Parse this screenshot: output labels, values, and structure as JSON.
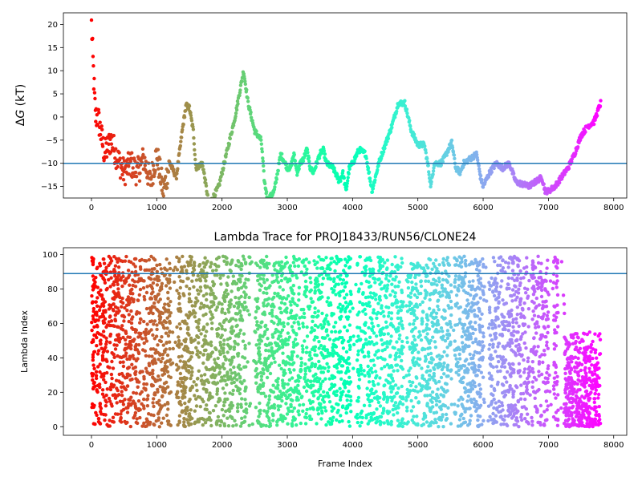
{
  "chart_data": [
    {
      "type": "scatter",
      "title": "",
      "xlabel": "",
      "ylabel_prefix": "Δ",
      "ylabel_var": "G",
      "ylabel_suffix": " (kT)",
      "xlim": [
        -430,
        8200
      ],
      "ylim": [
        -17.5,
        22.5
      ],
      "xticks": [
        0,
        1000,
        2000,
        3000,
        4000,
        5000,
        6000,
        7000,
        8000
      ],
      "yticks": [
        -15,
        -10,
        -5,
        0,
        5,
        10,
        15,
        20
      ],
      "hline": {
        "y": -10,
        "color": "#1f77b4"
      },
      "colormap": "rainbow_r",
      "color_by": "frame",
      "x_max_frame": 7800,
      "trace_keypoints": [
        [
          0,
          20
        ],
        [
          30,
          10
        ],
        [
          60,
          0
        ],
        [
          100,
          0
        ],
        [
          150,
          -4
        ],
        [
          200,
          -8
        ],
        [
          300,
          -5
        ],
        [
          400,
          -9
        ],
        [
          500,
          -12
        ],
        [
          600,
          -10
        ],
        [
          700,
          -12
        ],
        [
          800,
          -9
        ],
        [
          900,
          -14
        ],
        [
          1000,
          -8
        ],
        [
          1100,
          -16
        ],
        [
          1200,
          -10
        ],
        [
          1300,
          -13
        ],
        [
          1400,
          -2
        ],
        [
          1450,
          2.5
        ],
        [
          1500,
          2
        ],
        [
          1560,
          -3
        ],
        [
          1600,
          -11
        ],
        [
          1700,
          -10
        ],
        [
          1800,
          -19
        ],
        [
          1950,
          -15
        ],
        [
          2100,
          -6
        ],
        [
          2200,
          0
        ],
        [
          2330,
          10
        ],
        [
          2400,
          3
        ],
        [
          2500,
          -3
        ],
        [
          2600,
          -5
        ],
        [
          2650,
          -14
        ],
        [
          2700,
          -18
        ],
        [
          2800,
          -16
        ],
        [
          2900,
          -8
        ],
        [
          3000,
          -11
        ],
        [
          3050,
          -11
        ],
        [
          3100,
          -8
        ],
        [
          3150,
          -12
        ],
        [
          3200,
          -10
        ],
        [
          3250,
          -9
        ],
        [
          3300,
          -7
        ],
        [
          3350,
          -11
        ],
        [
          3400,
          -12
        ],
        [
          3500,
          -8
        ],
        [
          3550,
          -7
        ],
        [
          3600,
          -10
        ],
        [
          3700,
          -11
        ],
        [
          3800,
          -14
        ],
        [
          3850,
          -12
        ],
        [
          3900,
          -16
        ],
        [
          3950,
          -11
        ],
        [
          4000,
          -10
        ],
        [
          4100,
          -7
        ],
        [
          4200,
          -8
        ],
        [
          4250,
          -12
        ],
        [
          4300,
          -16
        ],
        [
          4400,
          -10
        ],
        [
          4500,
          -6
        ],
        [
          4600,
          -2
        ],
        [
          4700,
          3
        ],
        [
          4800,
          3
        ],
        [
          4850,
          0
        ],
        [
          4900,
          -3
        ],
        [
          5000,
          -6
        ],
        [
          5100,
          -6
        ],
        [
          5150,
          -10
        ],
        [
          5200,
          -15
        ],
        [
          5250,
          -10
        ],
        [
          5350,
          -10
        ],
        [
          5400,
          -9
        ],
        [
          5500,
          -6
        ],
        [
          5520,
          -5.5
        ],
        [
          5580,
          -11
        ],
        [
          5650,
          -12
        ],
        [
          5700,
          -10
        ],
        [
          5800,
          -9
        ],
        [
          5900,
          -8
        ],
        [
          5960,
          -13
        ],
        [
          6000,
          -15
        ],
        [
          6100,
          -12
        ],
        [
          6200,
          -10
        ],
        [
          6300,
          -11
        ],
        [
          6400,
          -10
        ],
        [
          6450,
          -12
        ],
        [
          6500,
          -14
        ],
        [
          6700,
          -15
        ],
        [
          6800,
          -14
        ],
        [
          6900,
          -13
        ],
        [
          6950,
          -16
        ],
        [
          7000,
          -16
        ],
        [
          7100,
          -15
        ],
        [
          7200,
          -13
        ],
        [
          7300,
          -11
        ],
        [
          7400,
          -8
        ],
        [
          7500,
          -4
        ],
        [
          7600,
          -2
        ],
        [
          7700,
          -1
        ],
        [
          7800,
          3
        ]
      ]
    },
    {
      "type": "scatter",
      "title": "Lambda Trace for PROJ18433/RUN56/CLONE24",
      "xlabel": "Frame Index",
      "ylabel": "Lambda Index",
      "xlim": [
        -430,
        8200
      ],
      "ylim": [
        -5,
        104
      ],
      "xticks": [
        0,
        1000,
        2000,
        3000,
        4000,
        5000,
        6000,
        7000,
        8000
      ],
      "yticks": [
        0,
        20,
        40,
        60,
        80,
        100
      ],
      "hline": {
        "y": 89,
        "color": "#1f77b4"
      },
      "colormap": "rainbow_r",
      "color_by": "frame",
      "x_max_frame": 7800,
      "lambda_range": [
        0,
        99
      ],
      "late_regime": {
        "from_frame": 7250,
        "max_lambda": 55
      }
    }
  ]
}
